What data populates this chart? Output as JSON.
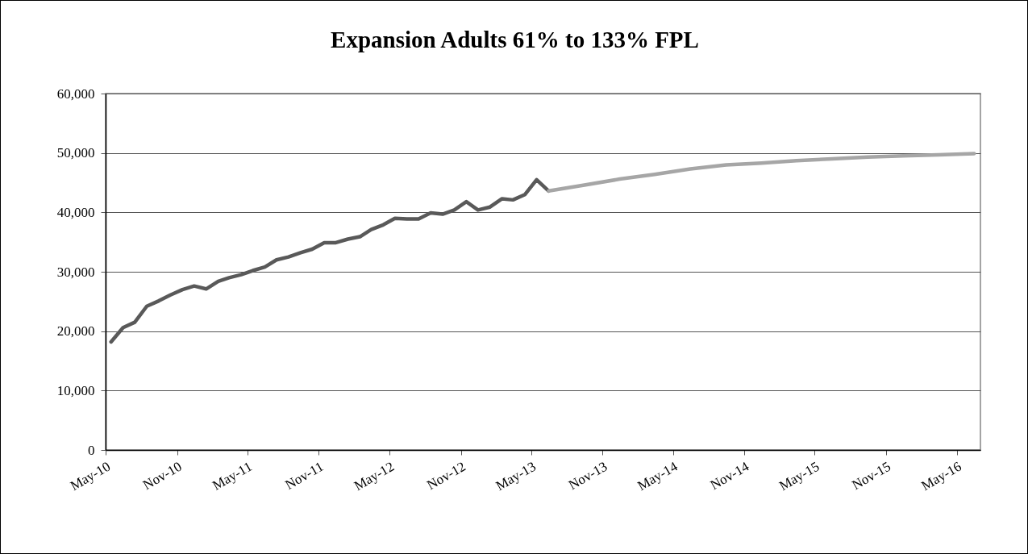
{
  "chart_data": {
    "type": "line",
    "title": "Expansion Adults 61% to 133% FPL",
    "x": [
      "2010-05-15",
      "2010-06-15",
      "2010-07-15",
      "2010-08-15",
      "2010-09-15",
      "2010-10-15",
      "2010-11-15",
      "2010-12-15",
      "2011-01-15",
      "2011-02-15",
      "2011-03-15",
      "2011-04-15",
      "2011-05-15",
      "2011-06-15",
      "2011-07-15",
      "2011-08-15",
      "2011-09-15",
      "2011-10-15",
      "2011-11-15",
      "2011-12-15",
      "2012-01-15",
      "2012-02-15",
      "2012-03-15",
      "2012-04-15",
      "2012-05-15",
      "2012-06-15",
      "2012-07-15",
      "2012-08-15",
      "2012-09-15",
      "2012-10-15",
      "2012-11-15",
      "2012-12-15",
      "2013-01-15",
      "2013-02-15",
      "2013-03-15",
      "2013-04-15",
      "2013-05-15",
      "2013-06-15"
    ],
    "series": [
      {
        "color": "#595959",
        "values": [
          18200,
          20600,
          21500,
          24200,
          25100,
          26100,
          27000,
          27600,
          27100,
          28400,
          29000,
          29500,
          30200,
          30800,
          32000,
          32500,
          33200,
          33800,
          34900,
          34900,
          35500,
          35900,
          37100,
          37900,
          39000,
          38900,
          38900,
          39900,
          39700,
          40400,
          41800,
          40400,
          40900,
          42300,
          42100,
          43000,
          45500,
          43600
        ]
      },
      {
        "color": "#a6a6a6",
        "x": [
          "2013-06-15",
          "2013-09-15",
          "2013-12-15",
          "2014-03-15",
          "2014-06-15",
          "2014-09-15",
          "2014-12-15",
          "2015-03-15",
          "2015-06-15",
          "2015-09-15",
          "2015-12-15",
          "2016-03-15",
          "2016-06-15"
        ],
        "values": [
          43600,
          44600,
          45600,
          46400,
          47300,
          48000,
          48300,
          48700,
          49000,
          49300,
          49500,
          49700,
          49900
        ]
      }
    ],
    "xlim": [
      "2010-05-01",
      "2016-07-01"
    ],
    "xticks": [
      {
        "value": "2010-05-01",
        "label": "May-10"
      },
      {
        "value": "2010-11-01",
        "label": "Nov-10"
      },
      {
        "value": "2011-05-01",
        "label": "May-11"
      },
      {
        "value": "2011-11-01",
        "label": "Nov-11"
      },
      {
        "value": "2012-05-01",
        "label": "May-12"
      },
      {
        "value": "2012-11-01",
        "label": "Nov-12"
      },
      {
        "value": "2013-05-01",
        "label": "May-13"
      },
      {
        "value": "2013-11-01",
        "label": "Nov-13"
      },
      {
        "value": "2014-05-01",
        "label": "May-14"
      },
      {
        "value": "2014-11-01",
        "label": "Nov-14"
      },
      {
        "value": "2015-05-01",
        "label": "May-15"
      },
      {
        "value": "2015-11-01",
        "label": "Nov-15"
      },
      {
        "value": "2016-05-01",
        "label": "May-16"
      }
    ],
    "ylim": [
      0,
      60000
    ],
    "yticks": [
      0,
      {
        "value": 10000,
        "label": "10,000"
      },
      {
        "value": 20000,
        "label": "20,000"
      },
      {
        "value": 30000,
        "label": "30,000"
      },
      {
        "value": 40000,
        "label": "40,000"
      },
      {
        "value": 50000,
        "label": "50,000"
      },
      {
        "value": 60000,
        "label": "60,000"
      }
    ],
    "grid": "y",
    "marker": "none",
    "line_style": "solid"
  }
}
